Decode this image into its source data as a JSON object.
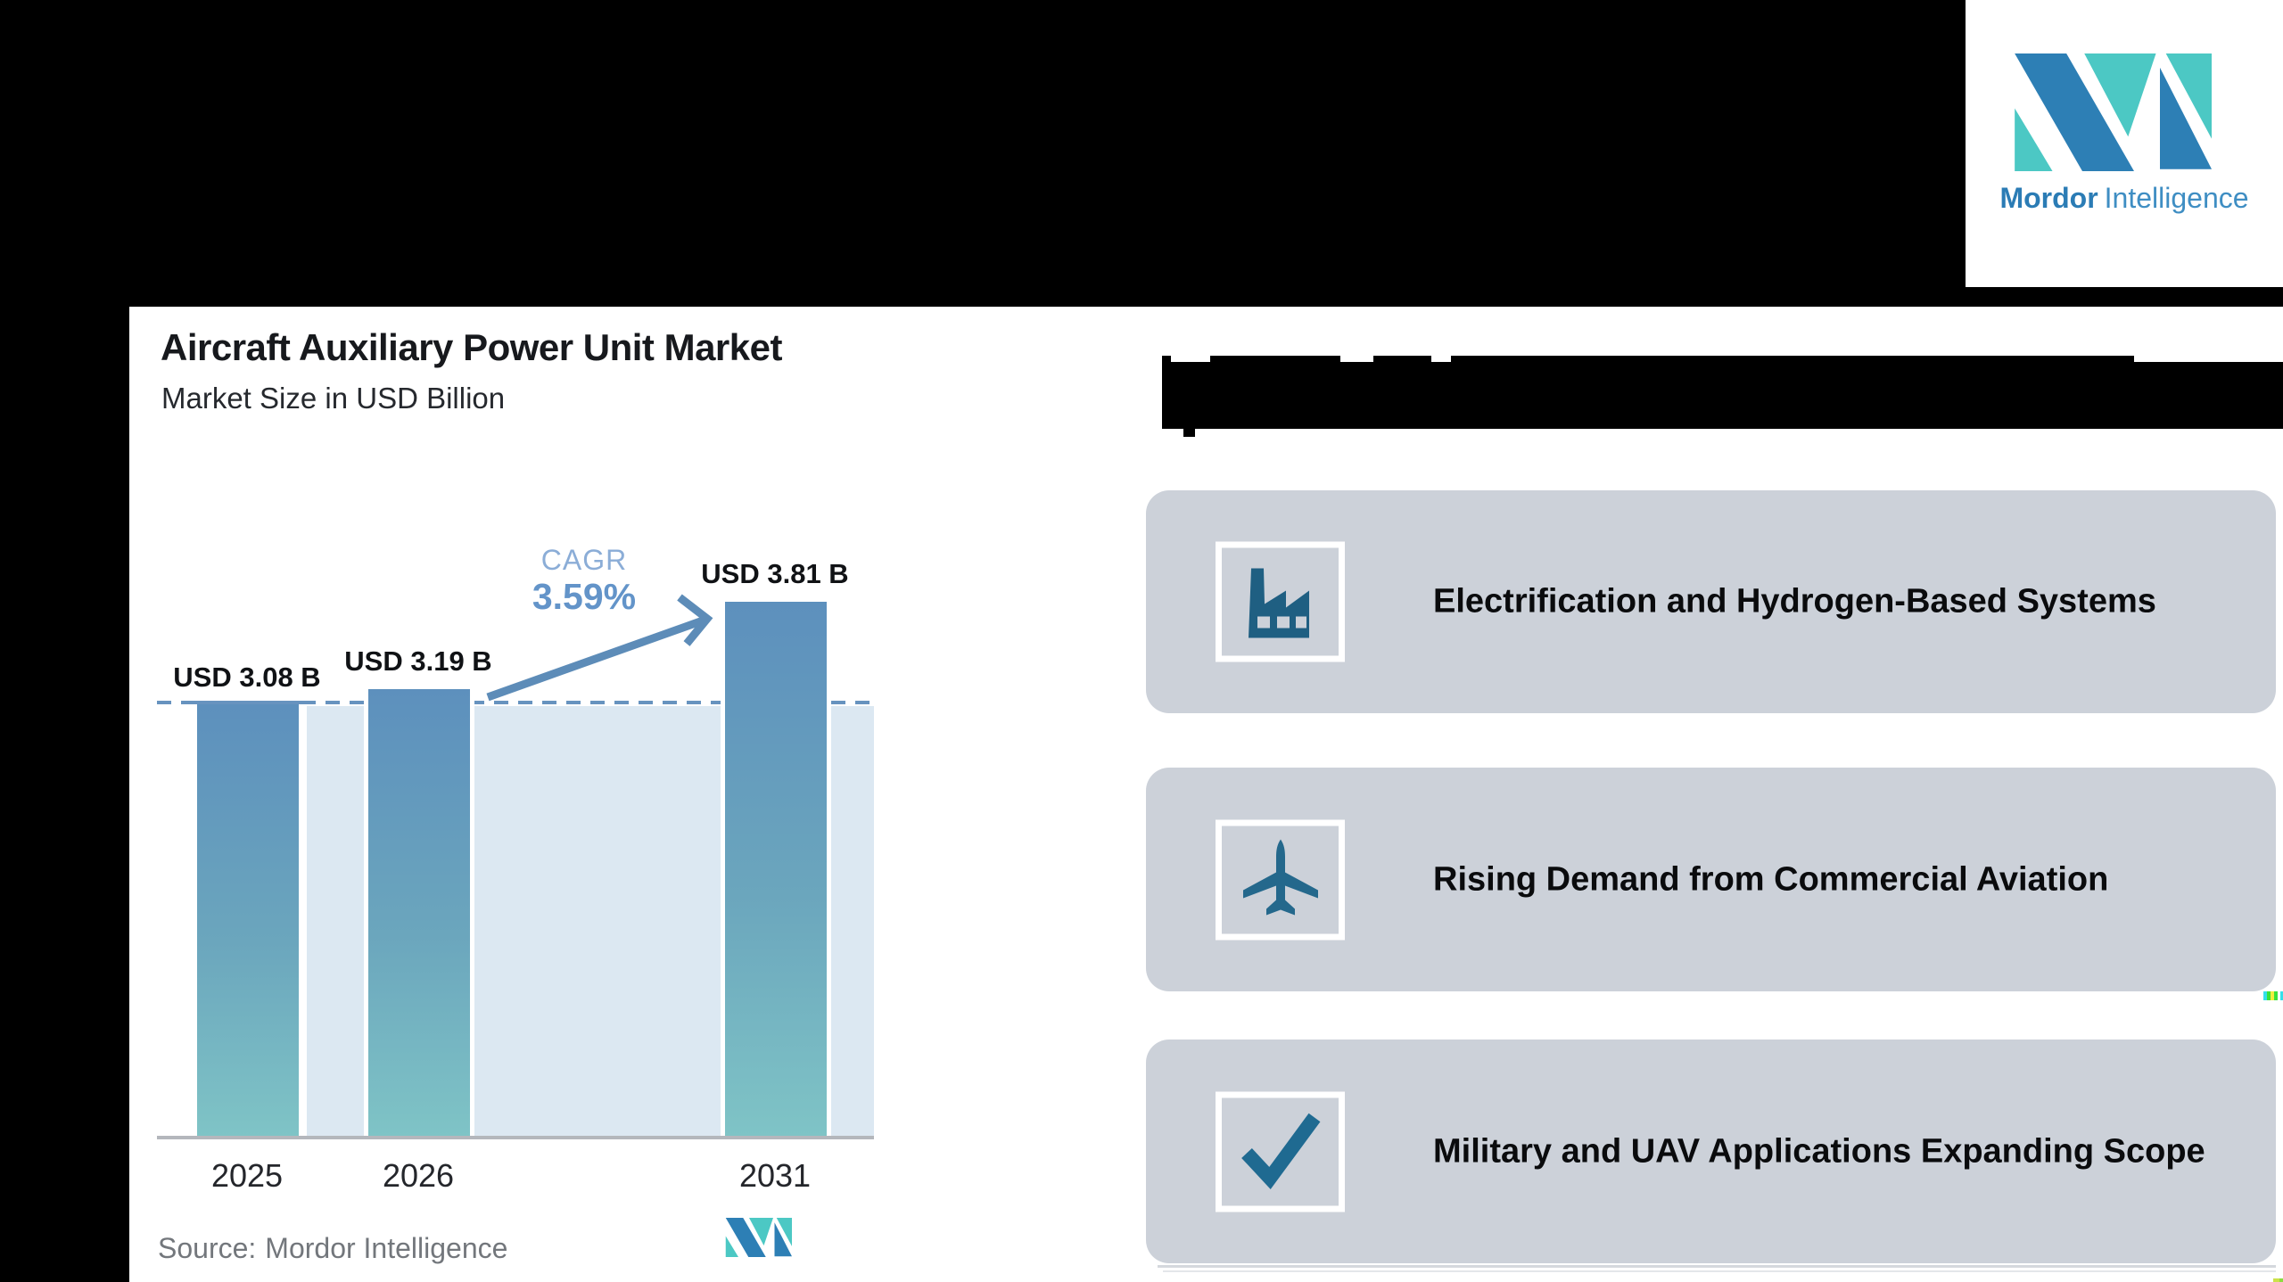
{
  "brand": {
    "name_bold": "Mordor",
    "name_light": "Intelligence"
  },
  "chart": {
    "title": "Aircraft Auxiliary Power Unit Market",
    "subtitle": "Market Size in USD Billion",
    "cagr_label": "CAGR",
    "cagr_value": "3.59%",
    "source_label": "Source:",
    "source_value": "Mordor Intelligence"
  },
  "chart_data": {
    "type": "bar",
    "title": "Aircraft Auxiliary Power Unit Market",
    "ylabel": "Market Size in USD Billion",
    "categories": [
      "2025",
      "2026",
      "2031"
    ],
    "values": [
      3.08,
      3.19,
      3.81
    ],
    "labels": [
      "USD 3.08 B",
      "USD 3.19 B",
      "USD 3.81 B"
    ],
    "cagr_percent": 3.59,
    "baseline_value": 3.08,
    "ylim": [
      0,
      4.16
    ],
    "grid": false,
    "legend": false,
    "annotations": [
      "CAGR 3.59%",
      "dashed reference line at 2025 value"
    ]
  },
  "trends": {
    "items": [
      {
        "icon": "factory-icon",
        "label": "Electrification and Hydrogen-Based Systems"
      },
      {
        "icon": "airplane-icon",
        "label": "Rising Demand from Commercial Aviation"
      },
      {
        "icon": "checkmark-icon",
        "label": "Military and UAV Applications Expanding Scope"
      }
    ]
  },
  "colors": {
    "background": "#000000",
    "panel": "#ffffff",
    "box_gray": "#ccd1d9",
    "bar_top": "#5d90bd",
    "bar_bottom": "#7fc4c6",
    "pale_band": "#dce8f2",
    "dashed_line": "#6793bf",
    "arrow": "#5d8cb8",
    "icon_glyph": "#1f5f82",
    "brand_blue": "#2b7cb5",
    "brand_teal": "#4cc8c4"
  }
}
